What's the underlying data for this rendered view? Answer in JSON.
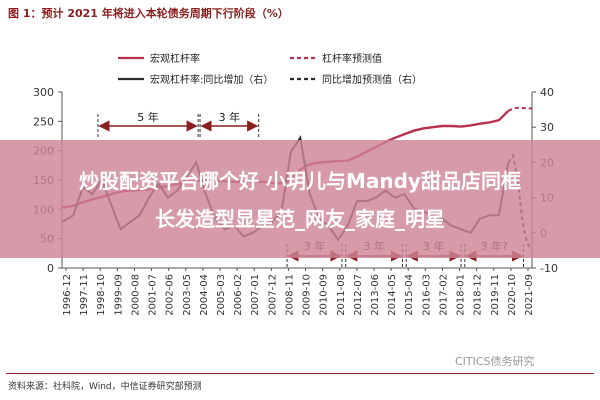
{
  "figure_title": "图 1：预计 2021 年将进入本轮债务周期下行阶段（%）",
  "overlay": {
    "line1": "炒股配资平台哪个好 小玥儿与Mandy甜品店同框",
    "line2": "长发造型显星范_网友_家庭_明星"
  },
  "source": "资料来源：社科院，Wind，中信证券研究部预测",
  "watermark": "CITICS债务研究",
  "colors": {
    "leverage": "#b8304c",
    "growth": "#2d2d2d",
    "arrow": "#8a1f1f",
    "title": "#8a1f1f"
  },
  "chart_data": {
    "type": "line",
    "legend": {
      "placement": "top",
      "items": [
        {
          "label": "宏观杠杆率",
          "style": "solid-red"
        },
        {
          "label": "杠杆率预测值",
          "style": "dashed-red"
        },
        {
          "label": "宏观杠杆率:同比增加（右）",
          "style": "solid-dark"
        },
        {
          "label": "同比增加预测值（右）",
          "style": "dashed-dark"
        }
      ]
    },
    "y_left": {
      "min": 0,
      "max": 300,
      "ticks": [
        0,
        50,
        100,
        150,
        200,
        250,
        300
      ]
    },
    "y_right": {
      "min": -10,
      "max": 40,
      "ticks": [
        -10,
        0,
        10,
        20,
        30,
        40
      ]
    },
    "x_tick_labels": [
      "1996-12",
      "1997-11",
      "1998-10",
      "1999-09",
      "2000-08",
      "2001-07",
      "2002-06",
      "2003-05",
      "2004-04",
      "2005-03",
      "2006-02",
      "2007-01",
      "2007-12",
      "2008-11",
      "2009-10",
      "2010-09",
      "2011-08",
      "2012-07",
      "2013-06",
      "2014-05",
      "2015-04",
      "2016-03",
      "2017-02",
      "2018-01",
      "2018-12",
      "2019-11",
      "2020-10",
      "2021-09"
    ],
    "x": [
      1996.9,
      1997.5,
      1998.0,
      1998.5,
      1999.0,
      1999.5,
      2000.0,
      2000.5,
      2001.0,
      2001.5,
      2002.0,
      2002.5,
      2003.0,
      2003.5,
      2004.0,
      2004.5,
      2005.0,
      2005.5,
      2006.0,
      2006.5,
      2007.0,
      2007.5,
      2008.0,
      2008.5,
      2009.0,
      2009.5,
      2010.0,
      2010.5,
      2011.0,
      2011.5,
      2012.0,
      2012.5,
      2013.0,
      2013.5,
      2014.0,
      2014.5,
      2015.0,
      2015.5,
      2016.0,
      2016.5,
      2017.0,
      2017.5,
      2018.0,
      2018.5,
      2019.0,
      2019.5,
      2020.0,
      2020.5
    ],
    "series": [
      {
        "name": "宏观杠杆率",
        "axis": "left",
        "style": "solid",
        "values": [
          103,
          106,
          112,
          117,
          121,
          126,
          130,
          132,
          133,
          134,
          137,
          140,
          143,
          147,
          149,
          150,
          149,
          148,
          147,
          147,
          148,
          147,
          145,
          144,
          150,
          168,
          177,
          180,
          181,
          182,
          183,
          190,
          198,
          206,
          215,
          222,
          228,
          234,
          238,
          240,
          242,
          242,
          241,
          243,
          246,
          248,
          252,
          268
        ]
      },
      {
        "name": "宏观杠杆率:同比增加（右）",
        "axis": "right",
        "style": "solid",
        "values": [
          3,
          5,
          13,
          11,
          15,
          8,
          1,
          3,
          5,
          10,
          14,
          10,
          12,
          16,
          20,
          11,
          4,
          1,
          2,
          -1,
          0,
          2,
          3,
          6,
          23,
          27,
          11,
          4,
          2,
          -2,
          2,
          9,
          9,
          10,
          12,
          10,
          11,
          7,
          6,
          5,
          4,
          2,
          1,
          0,
          4,
          5,
          5,
          20
        ]
      }
    ],
    "forecast_series": [
      {
        "name": "杠杆率预测值",
        "axis": "left",
        "style": "dashed",
        "x": [
          2020.5,
          2020.75,
          2021.0,
          2021.5,
          2021.75
        ],
        "values": [
          268,
          272,
          273,
          272,
          272
        ]
      },
      {
        "name": "同比增加预测值（右）",
        "axis": "right",
        "style": "dashed",
        "x": [
          2020.5,
          2020.75,
          2021.0,
          2021.25,
          2021.5,
          2021.75
        ],
        "values": [
          20,
          22,
          15,
          3,
          -3,
          -5
        ]
      }
    ],
    "annotations": [
      {
        "text": "5 年",
        "from": 1998.8,
        "to": 2004.1,
        "position": "top"
      },
      {
        "text": "3 年",
        "from": 2004.2,
        "to": 2007.3,
        "position": "top"
      },
      {
        "text": "3 年",
        "from": 2008.8,
        "to": 2011.7,
        "position": "bottom"
      },
      {
        "text": "3 年",
        "from": 2011.9,
        "to": 2014.9,
        "position": "bottom"
      },
      {
        "text": "3 年",
        "from": 2015.1,
        "to": 2018.0,
        "position": "bottom"
      },
      {
        "text": "3 年?",
        "from": 2018.2,
        "to": 2021.3,
        "position": "bottom"
      }
    ]
  }
}
